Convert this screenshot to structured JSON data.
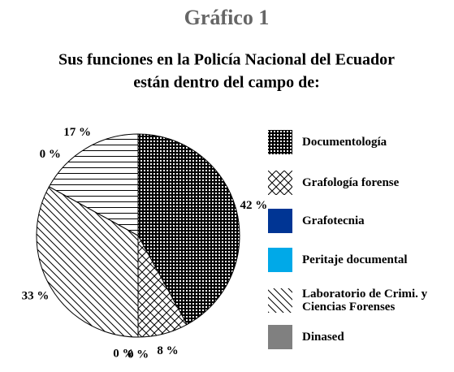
{
  "chart_data": {
    "type": "pie",
    "title": "Gráfico 1",
    "subtitle": [
      "Sus funciones en la Policía Nacional del Ecuador",
      "están dentro del campo de:"
    ],
    "categories": [
      "Documentología",
      "Grafología forense",
      "Grafotecnia",
      "Peritaje documental",
      "Laboratorio de Crimi. y Ciencias Forenses",
      "Dinased",
      null
    ],
    "values": [
      42,
      8,
      0,
      0,
      33,
      0,
      17
    ],
    "value_labels": [
      "42 %",
      "8 %",
      "0 %",
      "0 %",
      "33 %",
      "0 %",
      "17 %"
    ],
    "colors": [
      "checker",
      "crosshatch",
      "#003594",
      "#00a9e8",
      "diagonal",
      "#808080",
      "horizontal"
    ],
    "legend": "right"
  }
}
